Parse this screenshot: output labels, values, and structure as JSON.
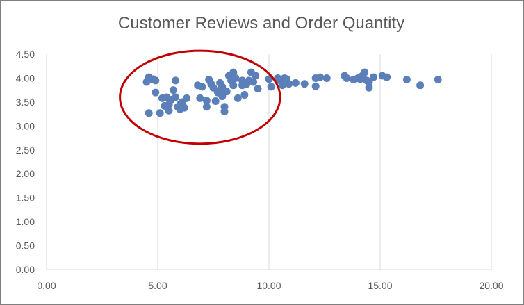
{
  "chart_data": {
    "type": "scatter",
    "title": "Customer Reviews and Order Quantity",
    "xlabel": "",
    "ylabel": "",
    "xlim": [
      0,
      20
    ],
    "ylim": [
      0,
      4.5
    ],
    "x_ticks": [
      "0.00",
      "5.00",
      "10.00",
      "15.00",
      "20.00"
    ],
    "y_ticks": [
      "0.00",
      "0.50",
      "1.00",
      "1.50",
      "2.00",
      "2.50",
      "3.00",
      "3.50",
      "4.00",
      "4.50"
    ],
    "grid": "vertical",
    "legend": "none",
    "marker_color": "#5b7fb8",
    "annotation": {
      "shape": "ellipse",
      "color": "#c00000",
      "center": [
        6.9,
        3.6
      ],
      "rx": 3.6,
      "ry": 0.97
    },
    "points": [
      [
        4.5,
        3.92
      ],
      [
        4.6,
        4.02
      ],
      [
        4.7,
        3.97
      ],
      [
        4.8,
        3.98
      ],
      [
        4.9,
        3.95
      ],
      [
        4.6,
        3.27
      ],
      [
        4.9,
        3.7
      ],
      [
        5.1,
        3.27
      ],
      [
        5.2,
        3.58
      ],
      [
        5.3,
        3.42
      ],
      [
        5.4,
        3.6
      ],
      [
        5.5,
        3.45
      ],
      [
        5.5,
        3.32
      ],
      [
        5.6,
        3.55
      ],
      [
        5.7,
        3.75
      ],
      [
        5.8,
        3.6
      ],
      [
        5.8,
        3.95
      ],
      [
        5.9,
        3.4
      ],
      [
        6.0,
        3.45
      ],
      [
        6.0,
        3.35
      ],
      [
        6.1,
        3.5
      ],
      [
        6.2,
        3.38
      ],
      [
        6.3,
        3.58
      ],
      [
        6.8,
        3.85
      ],
      [
        6.9,
        3.58
      ],
      [
        7.0,
        3.82
      ],
      [
        7.2,
        3.4
      ],
      [
        7.2,
        3.53
      ],
      [
        7.3,
        3.97
      ],
      [
        7.4,
        3.88
      ],
      [
        7.5,
        3.8
      ],
      [
        7.6,
        3.52
      ],
      [
        7.7,
        3.7
      ],
      [
        7.8,
        3.75
      ],
      [
        7.8,
        3.9
      ],
      [
        7.9,
        3.82
      ],
      [
        7.9,
        3.62
      ],
      [
        8.0,
        3.4
      ],
      [
        8.0,
        3.3
      ],
      [
        8.1,
        3.72
      ],
      [
        8.2,
        4.05
      ],
      [
        8.3,
        3.95
      ],
      [
        8.4,
        3.85
      ],
      [
        8.4,
        4.12
      ],
      [
        8.5,
        4.0
      ],
      [
        8.6,
        3.58
      ],
      [
        8.8,
        3.95
      ],
      [
        8.8,
        3.85
      ],
      [
        8.9,
        3.65
      ],
      [
        9.0,
        3.88
      ],
      [
        9.1,
        3.95
      ],
      [
        9.2,
        4.12
      ],
      [
        9.3,
        3.92
      ],
      [
        9.4,
        4.05
      ],
      [
        9.5,
        3.78
      ],
      [
        10.0,
        3.98
      ],
      [
        10.1,
        3.82
      ],
      [
        10.4,
        4.0
      ],
      [
        10.5,
        3.95
      ],
      [
        10.6,
        3.85
      ],
      [
        10.7,
        4.0
      ],
      [
        10.8,
        3.98
      ],
      [
        10.9,
        3.88
      ],
      [
        11.2,
        3.9
      ],
      [
        11.6,
        3.88
      ],
      [
        12.1,
        4.0
      ],
      [
        12.1,
        3.83
      ],
      [
        12.3,
        4.02
      ],
      [
        12.6,
        4.0
      ],
      [
        13.4,
        4.05
      ],
      [
        13.5,
        4.0
      ],
      [
        13.8,
        3.97
      ],
      [
        14.0,
        4.0
      ],
      [
        14.1,
        3.98
      ],
      [
        14.2,
        4.05
      ],
      [
        14.3,
        4.12
      ],
      [
        14.4,
        3.95
      ],
      [
        14.5,
        3.8
      ],
      [
        14.5,
        3.92
      ],
      [
        14.7,
        4.02
      ],
      [
        15.1,
        4.05
      ],
      [
        15.3,
        4.02
      ],
      [
        16.2,
        3.97
      ],
      [
        16.8,
        3.85
      ],
      [
        17.6,
        3.97
      ]
    ]
  }
}
